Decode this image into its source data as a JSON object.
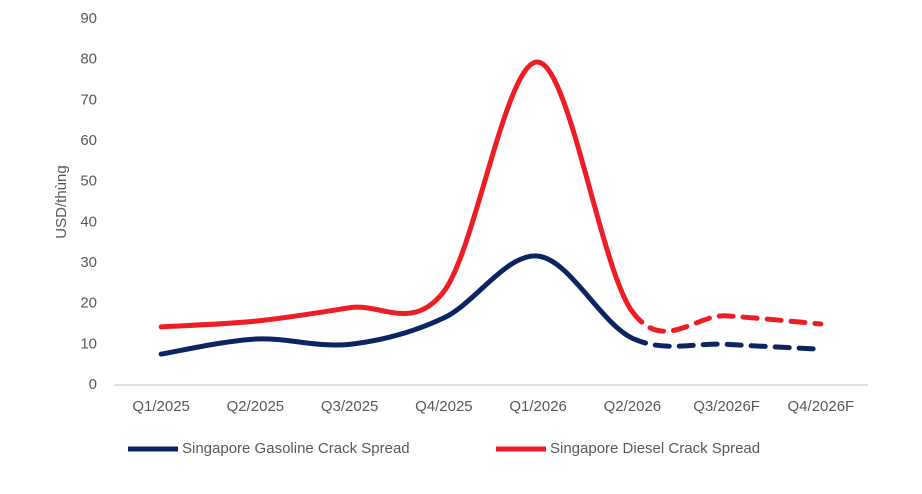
{
  "chart_data": {
    "type": "line",
    "y_label": "USD/thùng",
    "categories": [
      "Q1/2025",
      "Q2/2025",
      "Q3/2025",
      "Q4/2025",
      "Q1/2026",
      "Q2/2026",
      "Q3/2026F",
      "Q4/2026F"
    ],
    "series": [
      {
        "name": "Singapore Gasoline Crack Spread",
        "color": "#0c2461",
        "values": [
          7.6,
          11.3,
          10,
          16.5,
          31.7,
          11.5,
          10,
          8.8
        ]
      },
      {
        "name": "Singapore Diesel Crack Spread",
        "color": "#ee1c25",
        "values": [
          14.3,
          15.7,
          19,
          23,
          79.4,
          18,
          17,
          15
        ]
      }
    ],
    "dashed_from_index": 5,
    "ylim": [
      0,
      90
    ],
    "yticks": [
      0,
      10,
      20,
      30,
      40,
      50,
      60,
      70,
      80,
      90
    ],
    "grid": false,
    "legend": "bottom"
  }
}
